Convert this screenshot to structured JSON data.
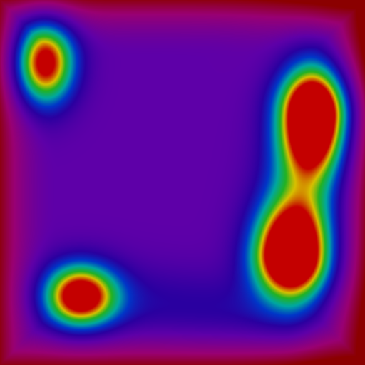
{
  "chart_data": {
    "type": "heatmap",
    "title": "",
    "xlabel": "",
    "ylabel": "",
    "xlim": [
      0,
      1
    ],
    "ylim": [
      0,
      1
    ],
    "grid": false,
    "legend": "none",
    "axes_visible": false,
    "colormap": {
      "name": "rainbow",
      "stops": [
        {
          "value": 0.0,
          "color": "#8b0000"
        },
        {
          "value": 0.14,
          "color": "#990073"
        },
        {
          "value": 0.3,
          "color": "#5e00a8"
        },
        {
          "value": 0.42,
          "color": "#2a00a0"
        },
        {
          "value": 0.54,
          "color": "#0036c8"
        },
        {
          "value": 0.66,
          "color": "#00a8a0"
        },
        {
          "value": 0.78,
          "color": "#22b222"
        },
        {
          "value": 0.88,
          "color": "#d8c000"
        },
        {
          "value": 1.0,
          "color": "#c40000"
        }
      ]
    },
    "baseline": 0.3,
    "edge_falloff": {
      "amount": 0.28,
      "width": 0.16,
      "corner_bias": [
        {
          "x": 1.0,
          "y": 0.0,
          "amount": 0.1
        },
        {
          "x": 1.0,
          "y": 1.0,
          "amount": 0.1
        }
      ]
    },
    "peaks": [
      {
        "name": "peak-top-left",
        "x": 0.122,
        "y": 0.828,
        "amplitude": 0.78,
        "sx": 0.058,
        "sy": 0.08
      },
      {
        "name": "peak-right-upper",
        "x": 0.857,
        "y": 0.684,
        "amplitude": 0.78,
        "sx": 0.062,
        "sy": 0.104
      },
      {
        "name": "peak-right-lower",
        "x": 0.799,
        "y": 0.305,
        "amplitude": 0.76,
        "sx": 0.07,
        "sy": 0.09
      },
      {
        "name": "peak-bottom-left",
        "x": 0.221,
        "y": 0.189,
        "amplitude": 0.76,
        "sx": 0.07,
        "sy": 0.06
      }
    ],
    "ridges": [
      {
        "name": "ridge-right",
        "from": [
          0.857,
          0.684
        ],
        "to": [
          0.799,
          0.305
        ],
        "amplitude": 0.4,
        "width": 0.075
      },
      {
        "name": "ridge-bottom",
        "from": [
          0.221,
          0.189
        ],
        "to": [
          0.78,
          0.14
        ],
        "amplitude": 0.12,
        "width": 0.07
      }
    ]
  }
}
